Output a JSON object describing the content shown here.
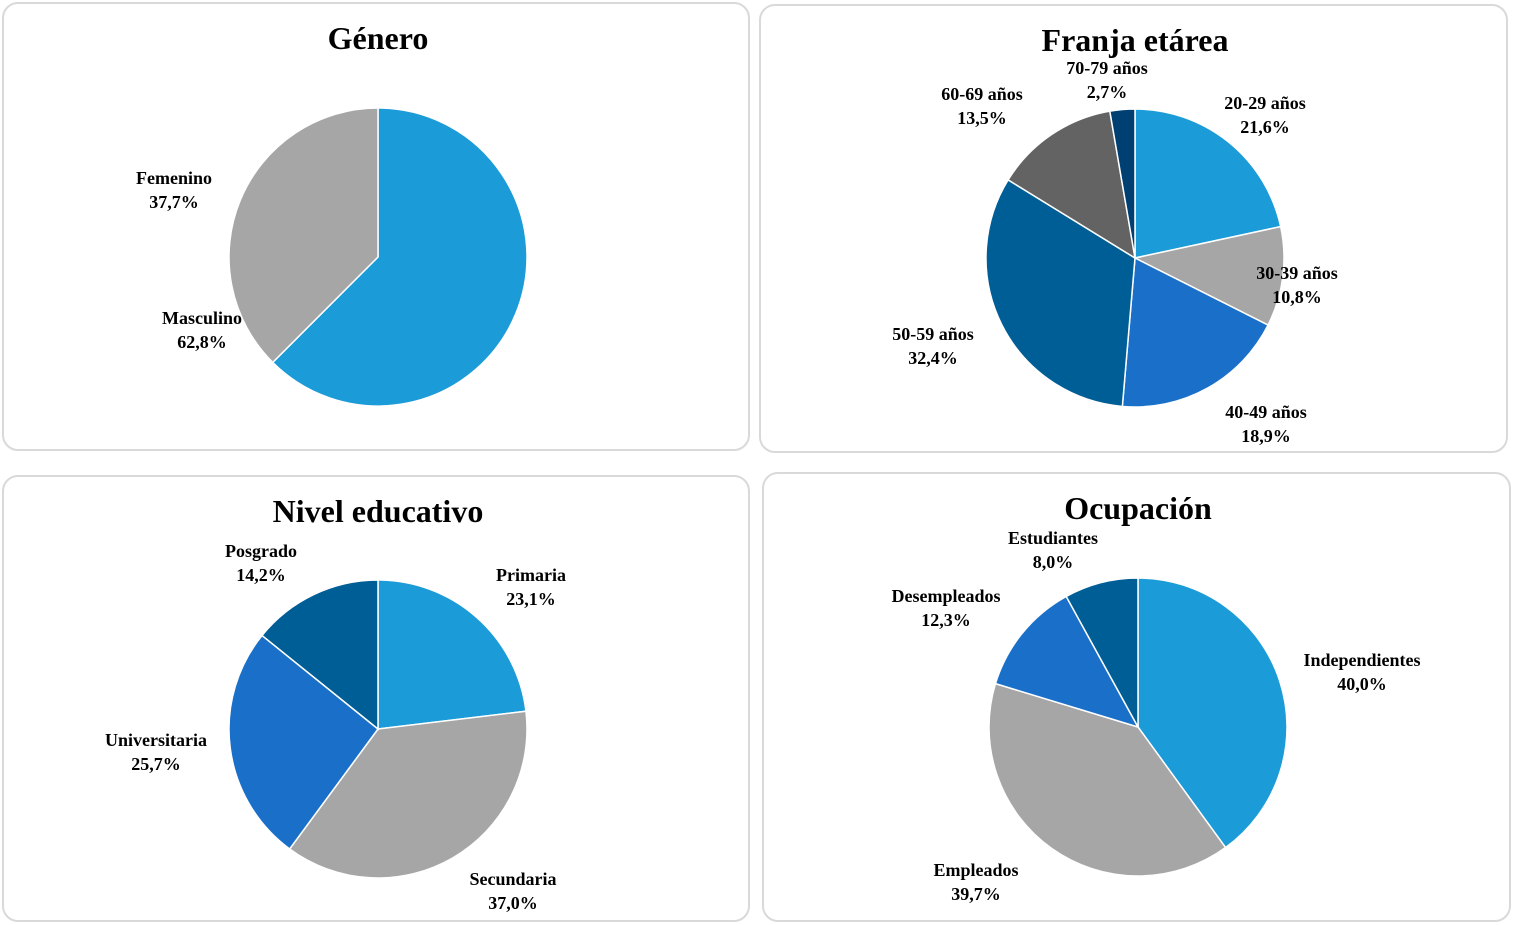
{
  "chart_data": [
    {
      "type": "pie",
      "title": "Género",
      "slices": [
        {
          "label": "Masculino",
          "value": 62.8,
          "value_text": "62,8%",
          "color": "#1b9bd7"
        },
        {
          "label": "Femenino",
          "value": 37.7,
          "value_text": "37,7%",
          "color": "#a6a6a6"
        }
      ]
    },
    {
      "type": "pie",
      "title": "Franja etárea",
      "slices": [
        {
          "label": "20-29 años",
          "value": 21.6,
          "value_text": "21,6%",
          "color": "#1b9bd7"
        },
        {
          "label": "30-39 años",
          "value": 10.8,
          "value_text": "10,8%",
          "color": "#a6a6a6"
        },
        {
          "label": "40-49 años",
          "value": 18.9,
          "value_text": "18,9%",
          "color": "#1a70c9"
        },
        {
          "label": "50-59 años",
          "value": 32.4,
          "value_text": "32,4%",
          "color": "#005e97"
        },
        {
          "label": "60-69 años",
          "value": 13.5,
          "value_text": "13,5%",
          "color": "#636363"
        },
        {
          "label": "70-79 años",
          "value": 2.7,
          "value_text": "2,7%",
          "color": "#003f72"
        }
      ]
    },
    {
      "type": "pie",
      "title": "Nivel educativo",
      "slices": [
        {
          "label": "Primaria",
          "value": 23.1,
          "value_text": "23,1%",
          "color": "#1b9bd7"
        },
        {
          "label": "Secundaria",
          "value": 37.0,
          "value_text": "37,0%",
          "color": "#a6a6a6"
        },
        {
          "label": "Universitaria",
          "value": 25.7,
          "value_text": "25,7%",
          "color": "#1a70c9"
        },
        {
          "label": "Posgrado",
          "value": 14.2,
          "value_text": "14,2%",
          "color": "#005e97"
        }
      ]
    },
    {
      "type": "pie",
      "title": "Ocupación",
      "slices": [
        {
          "label": "Independientes",
          "value": 40.0,
          "value_text": "40,0%",
          "color": "#1b9bd7"
        },
        {
          "label": "Empleados",
          "value": 39.7,
          "value_text": "39,7%",
          "color": "#a6a6a6"
        },
        {
          "label": "Desempleados",
          "value": 12.3,
          "value_text": "12,3%",
          "color": "#1a70c9"
        },
        {
          "label": "Estudiantes",
          "value": 8.0,
          "value_text": "8,0%",
          "color": "#005e97"
        }
      ]
    }
  ]
}
